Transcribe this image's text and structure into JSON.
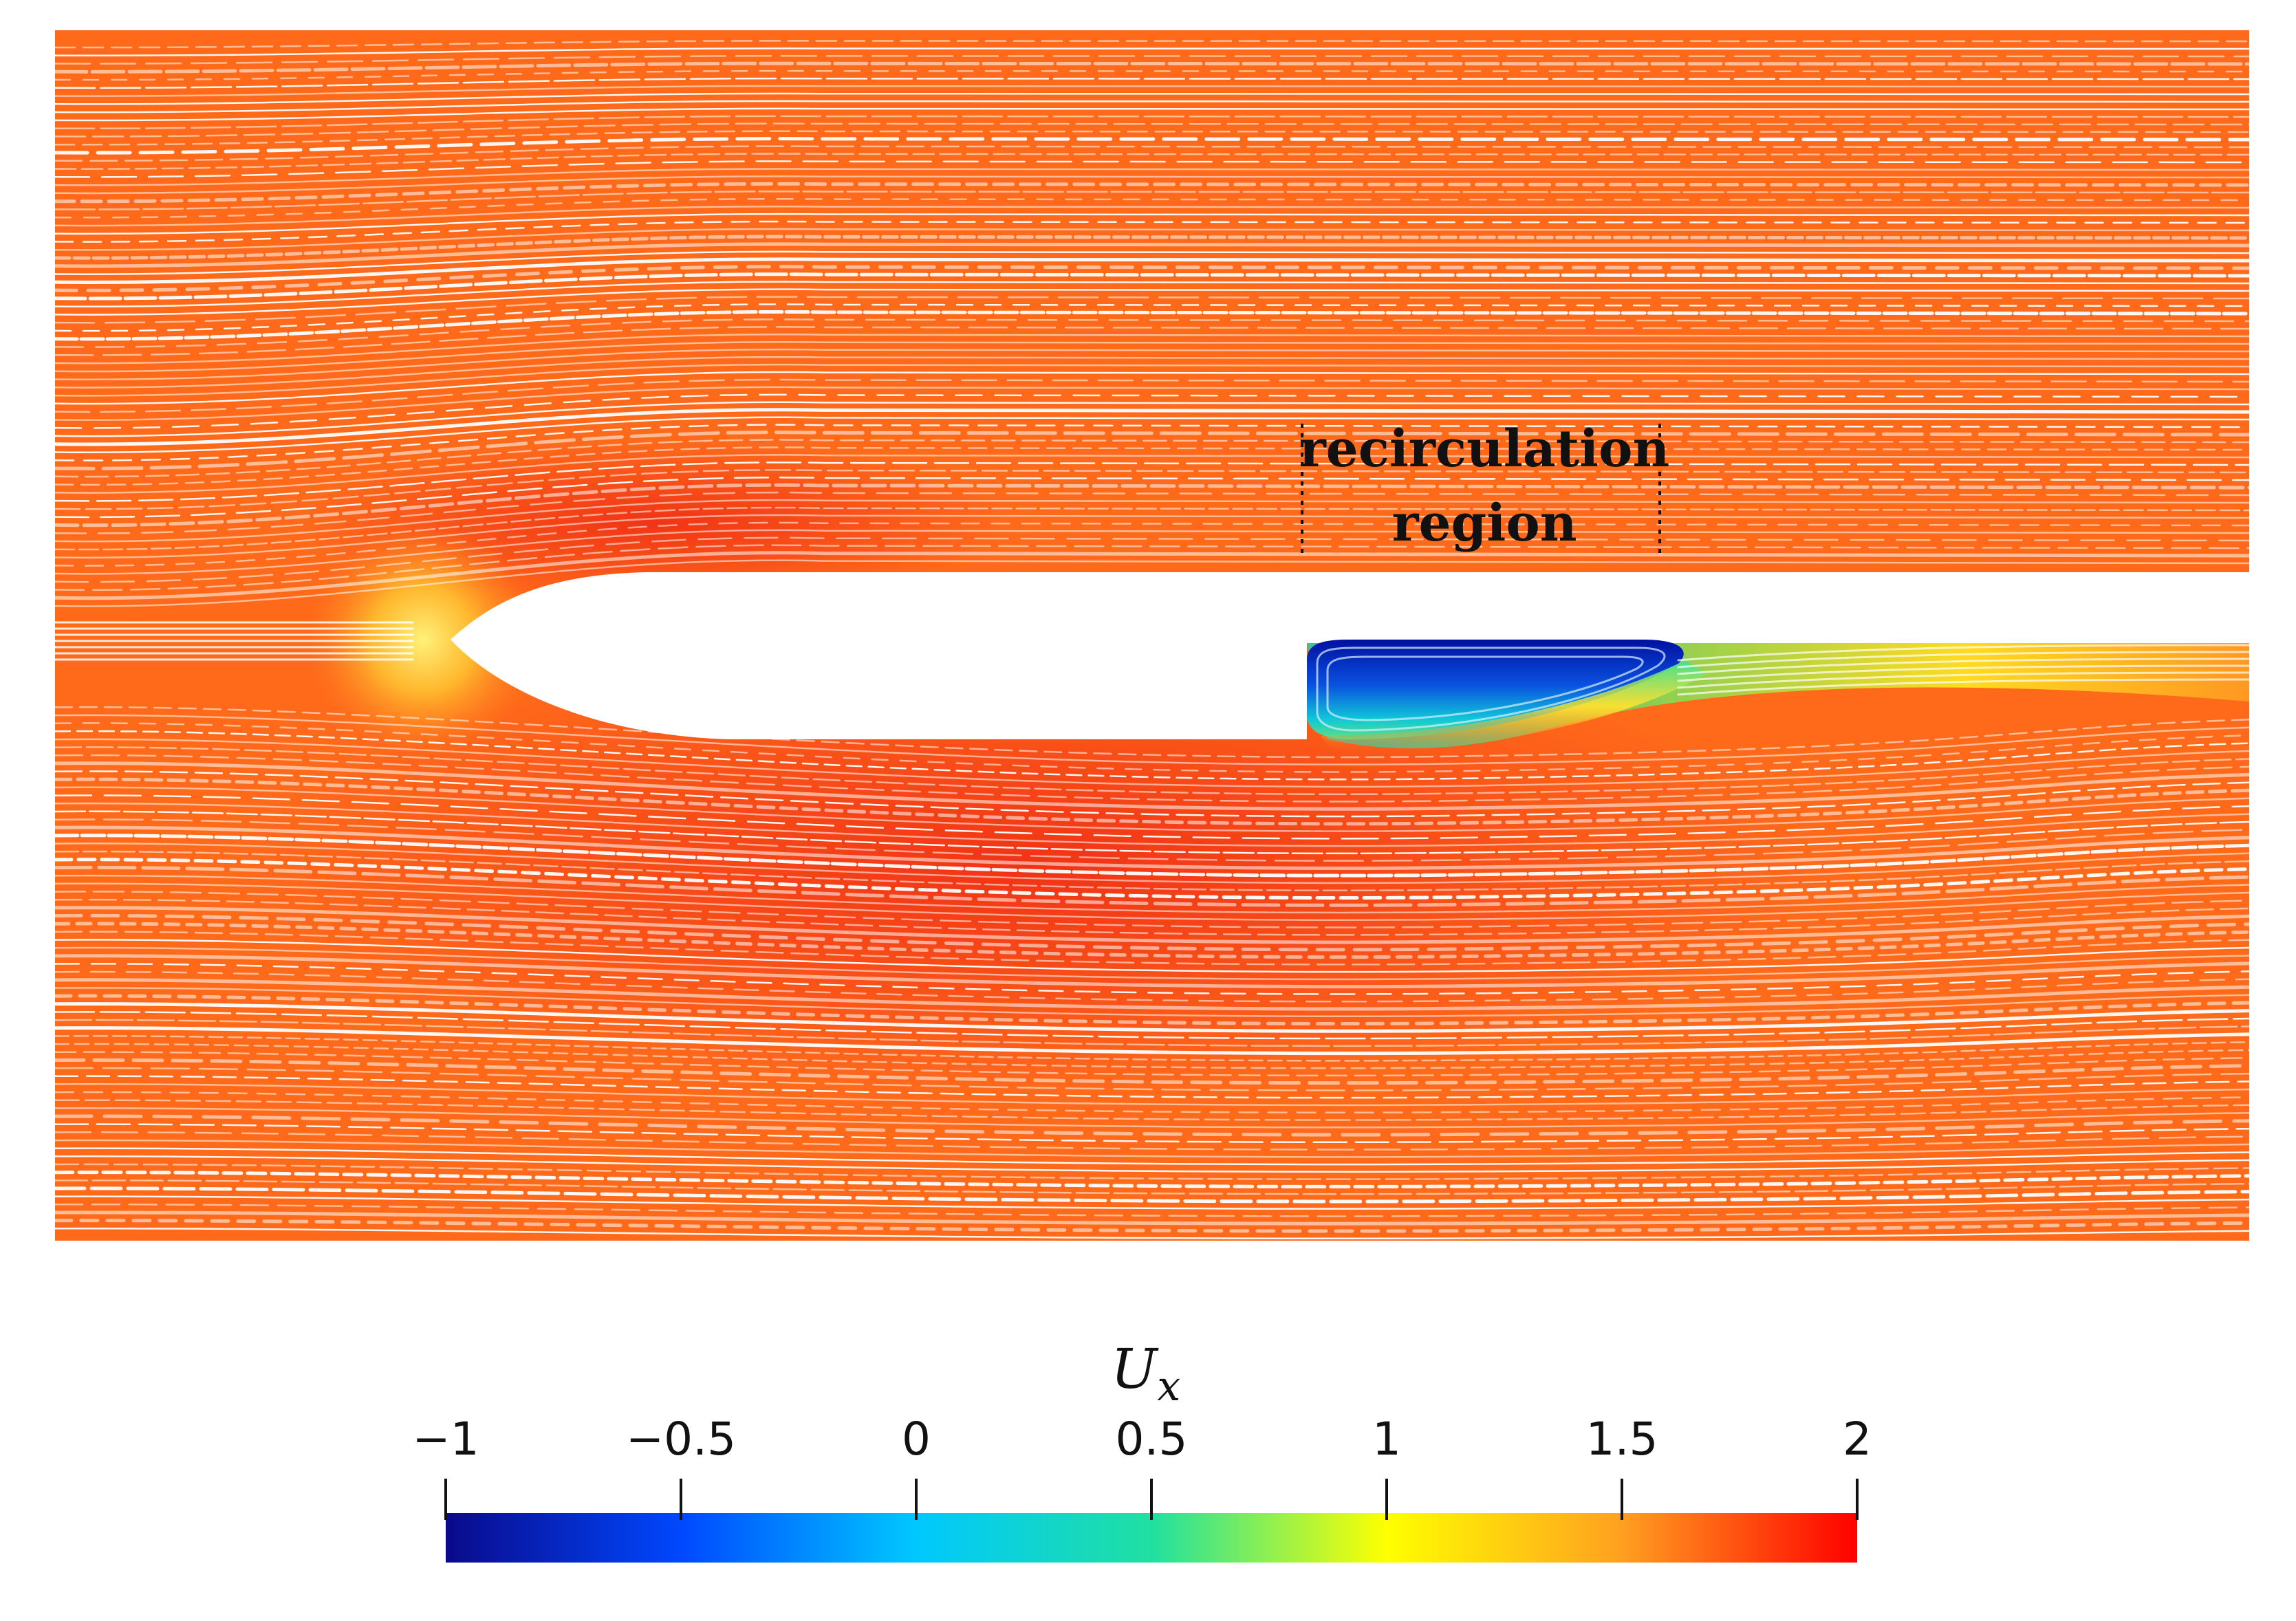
{
  "annotation": {
    "line1": "recirculation",
    "line2": "region"
  },
  "colorbar": {
    "title_main": "U",
    "title_sub": "x",
    "ticks": [
      {
        "value": -1,
        "label": "−1"
      },
      {
        "value": -0.5,
        "label": "−0.5"
      },
      {
        "value": 0,
        "label": "0"
      },
      {
        "value": 0.5,
        "label": "0.5"
      },
      {
        "value": 1,
        "label": "1"
      },
      {
        "value": 1.5,
        "label": "1.5"
      },
      {
        "value": 2,
        "label": "2"
      }
    ],
    "range": [
      -1,
      2
    ],
    "colors": [
      "#0a0a8a",
      "#0048ff",
      "#00c8ff",
      "#20e0a0",
      "#ffff00",
      "#ffa020",
      "#ff0000"
    ]
  },
  "field_colors": {
    "freestream": "#ff6a1a",
    "accelerated": "#f23018",
    "stagnation": "#ffe23a",
    "recirculation": "#0a3fd0",
    "streamline": "#ffffff"
  }
}
